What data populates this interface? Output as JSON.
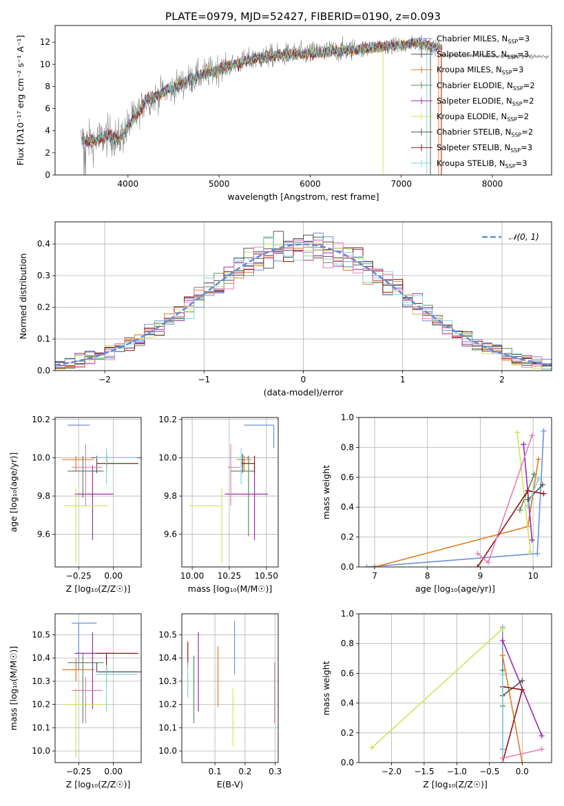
{
  "title": "PLATE=0979, MJD=52427, FIBERID=0190, z=0.093",
  "colors": {
    "Chabrier MILES": "#6a8fd8",
    "Salpeter MILES": "#4a4a4a",
    "Kroupa MILES": "#e07b20",
    "Chabrier ELODIE": "#5b8a5b",
    "Salpeter ELODIE": "#9a2aa8",
    "Kroupa ELODIE": "#cfe35a",
    "Chabrier STELIB": "#555555",
    "Salpeter STELIB": "#9a1010",
    "Kroupa STELIB": "#7fd5dc",
    "pink": "#e37fb5",
    "data": "#808080",
    "normal": "#5b8fd8"
  },
  "legend": [
    {
      "name": "Chabrier MILES",
      "text": "Chabrier MILES, N",
      "sub": "SSP",
      "tail": "=3"
    },
    {
      "name": "Salpeter MILES",
      "text": "Salpeter MILES, N",
      "sub": "SSP",
      "tail": "=3"
    },
    {
      "name": "Kroupa MILES",
      "text": "Kroupa MILES, N",
      "sub": "SSP",
      "tail": "=3"
    },
    {
      "name": "Chabrier ELODIE",
      "text": "Chabrier ELODIE, N",
      "sub": "SSP",
      "tail": "=2"
    },
    {
      "name": "Salpeter ELODIE",
      "text": "Salpeter ELODIE, N",
      "sub": "SSP",
      "tail": "=2"
    },
    {
      "name": "Kroupa ELODIE",
      "text": "Kroupa ELODIE, N",
      "sub": "SSP",
      "tail": "=2"
    },
    {
      "name": "Chabrier STELIB",
      "text": "Chabrier STELIB, N",
      "sub": "SSP",
      "tail": "=2"
    },
    {
      "name": "Salpeter STELIB",
      "text": "Salpeter STELIB, N",
      "sub": "SSP",
      "tail": "=3"
    },
    {
      "name": "Kroupa STELIB",
      "text": "Kroupa STELIB, N",
      "sub": "SSP",
      "tail": "=3"
    }
  ],
  "chart_data": [
    {
      "id": "spectrum",
      "type": "line",
      "xlabel": "wavelength [Angstrom, rest frame]",
      "ylabel": "Flux [fλ10⁻¹⁷ erg cm⁻² s⁻¹ A⁻¹]",
      "xlim": [
        3200,
        8650
      ],
      "ylim": [
        0,
        13.5
      ],
      "xticks": [
        4000,
        5000,
        6000,
        7000,
        8000
      ],
      "yticks": [
        0,
        2,
        4,
        6,
        8,
        10,
        12
      ],
      "continuum_x": [
        3500,
        3600,
        3700,
        3800,
        3900,
        4000,
        4100,
        4200,
        4300,
        4400,
        4500,
        4700,
        5000,
        5300,
        5600,
        6000,
        6400,
        6800,
        7200,
        7400
      ],
      "continuum_y": [
        3.2,
        3.0,
        3.3,
        3.6,
        3.2,
        4.3,
        5.5,
        6.8,
        7.0,
        7.5,
        7.9,
        8.7,
        9.6,
        10.3,
        10.8,
        11.0,
        11.3,
        11.6,
        11.9,
        11.5
      ],
      "data_extends_to": 8620,
      "dip_x": [
        6800,
        7400
      ]
    },
    {
      "id": "residuals",
      "type": "histogram",
      "xlabel": "(data-model)/error",
      "ylabel": "Normed distribution",
      "xlim": [
        -2.5,
        2.5
      ],
      "ylim": [
        0,
        0.47
      ],
      "xticks": [
        -2,
        -1,
        0,
        1,
        2
      ],
      "yticks": [
        0.0,
        0.1,
        0.2,
        0.3,
        0.4
      ],
      "bin_width": 0.1,
      "reference_label": "𝒩(0, 1)"
    },
    {
      "id": "age-vs-Z",
      "type": "scatter",
      "xlabel": "Z [log₁₀(Z/Z☉)]",
      "ylabel": "age  [log₁₀(age/yr)]",
      "xlim": [
        -0.42,
        0.2
      ],
      "ylim": [
        9.43,
        10.21
      ],
      "xticks": [
        -0.25,
        0.0
      ],
      "xticklabels": [
        "−0.25",
        "0.00"
      ],
      "yticks": [
        9.6,
        9.8,
        10.0,
        10.2
      ],
      "points": [
        {
          "series": "Chabrier MILES",
          "x": -0.25,
          "y": 10.17,
          "xerr": [
            0.08,
            0.08
          ],
          "yerr": [
            0.0,
            0.0
          ]
        },
        {
          "series": "Salpeter MILES",
          "x": -0.05,
          "y": 10.0,
          "xerr": [
            0.11,
            0.22
          ],
          "yerr": [
            0.05,
            0.02
          ]
        },
        {
          "series": "Kroupa MILES",
          "x": -0.27,
          "y": 9.99,
          "xerr": [
            0.1,
            0.13
          ],
          "yerr": [
            0.06,
            0.02
          ]
        },
        {
          "series": "Chabrier ELODIE",
          "x": -0.22,
          "y": 9.93,
          "xerr": [
            0.11,
            0.15
          ],
          "yerr": [
            0.14,
            0.08
          ]
        },
        {
          "series": "Salpeter ELODIE",
          "x": -0.15,
          "y": 9.81,
          "xerr": [
            0.13,
            0.15
          ],
          "yerr": [
            0.24,
            0.15
          ]
        },
        {
          "series": "Kroupa ELODIE",
          "x": -0.27,
          "y": 9.75,
          "xerr": [
            0.09,
            0.23
          ],
          "yerr": [
            0.3,
            0.09
          ]
        },
        {
          "series": "Chabrier STELIB",
          "x": -0.12,
          "y": 10.0,
          "xerr": [
            0.0,
            0.32
          ],
          "yerr": [
            0.08,
            0.01
          ]
        },
        {
          "series": "Salpeter STELIB",
          "x": -0.05,
          "y": 9.97,
          "xerr": [
            0.07,
            0.23
          ],
          "yerr": [
            0.05,
            0.04
          ]
        },
        {
          "series": "Kroupa STELIB",
          "x": -0.05,
          "y": 10.0,
          "xerr": [
            0.08,
            0.22
          ],
          "yerr": [
            0.14,
            0.05
          ]
        },
        {
          "series": "pink",
          "x": -0.2,
          "y": 9.95,
          "xerr": [
            0.1,
            0.12
          ],
          "yerr": [
            0.2,
            0.12
          ]
        }
      ]
    },
    {
      "id": "age-vs-mass",
      "type": "scatter",
      "xlabel": "mass [log₁₀(M/M☉)]",
      "xlim": [
        9.93,
        10.58
      ],
      "ylim": [
        9.43,
        10.21
      ],
      "xticks": [
        10.0,
        10.25,
        10.5
      ],
      "xticklabels": [
        "10.00",
        "10.25",
        "10.50"
      ],
      "yticks": [
        9.6,
        9.8,
        10.0,
        10.2
      ],
      "points": [
        {
          "series": "Chabrier MILES",
          "x": 10.55,
          "y": 10.17,
          "xerr": [
            0.2,
            0.0
          ],
          "yerr": [
            0.12,
            0.0
          ]
        },
        {
          "series": "Salpeter MILES",
          "x": 10.34,
          "y": 10.0,
          "xerr": [
            0.05,
            0.03
          ],
          "yerr": [
            0.05,
            0.02
          ]
        },
        {
          "series": "Kroupa MILES",
          "x": 10.35,
          "y": 9.99,
          "xerr": [
            0.05,
            0.05
          ],
          "yerr": [
            0.06,
            0.02
          ]
        },
        {
          "series": "Chabrier ELODIE",
          "x": 10.38,
          "y": 9.93,
          "xerr": [
            0.12,
            0.04
          ],
          "yerr": [
            0.34,
            0.08
          ]
        },
        {
          "series": "Salpeter ELODIE",
          "x": 10.42,
          "y": 9.81,
          "xerr": [
            0.2,
            0.09
          ],
          "yerr": [
            0.24,
            0.15
          ]
        },
        {
          "series": "Kroupa ELODIE",
          "x": 10.2,
          "y": 9.75,
          "xerr": [
            0.22,
            0.0
          ],
          "yerr": [
            0.3,
            0.09
          ]
        },
        {
          "series": "Chabrier STELIB",
          "x": 10.34,
          "y": 10.0,
          "xerr": [
            0.0,
            0.04
          ],
          "yerr": [
            0.08,
            0.01
          ]
        },
        {
          "series": "Salpeter STELIB",
          "x": 10.42,
          "y": 9.97,
          "xerr": [
            0.09,
            0.0
          ],
          "yerr": [
            0.05,
            0.04
          ]
        },
        {
          "series": "Kroupa STELIB",
          "x": 10.33,
          "y": 10.0,
          "xerr": [
            0.04,
            0.04
          ],
          "yerr": [
            0.14,
            0.05
          ]
        },
        {
          "series": "pink",
          "x": 10.26,
          "y": 9.95,
          "xerr": [
            0.02,
            0.06
          ],
          "yerr": [
            0.2,
            0.12
          ]
        }
      ]
    },
    {
      "id": "weight-vs-age",
      "type": "line",
      "xlabel": "age  [log₁₀(age/yr)]",
      "ylabel": "mass weight",
      "xlim": [
        6.7,
        10.35
      ],
      "ylim": [
        0,
        1.0
      ],
      "xticks": [
        7,
        8,
        9,
        10
      ],
      "yticks": [
        0.0,
        0.2,
        0.4,
        0.6,
        0.8,
        1.0
      ],
      "series": [
        {
          "name": "Chabrier MILES",
          "x": [
            6.85,
            10.08,
            10.2
          ],
          "y": [
            0.0,
            0.09,
            0.91
          ]
        },
        {
          "name": "Kroupa MILES",
          "x": [
            7.0,
            9.9,
            10.1
          ],
          "y": [
            0.0,
            0.27,
            0.72
          ]
        },
        {
          "name": "Chabrier ELODIE",
          "x": [
            9.75,
            10.02
          ],
          "y": [
            0.38,
            0.62
          ]
        },
        {
          "name": "Salpeter ELODIE",
          "x": [
            9.82,
            9.98
          ],
          "y": [
            0.82,
            0.18
          ]
        },
        {
          "name": "Kroupa ELODIE",
          "x": [
            9.7,
            9.95
          ],
          "y": [
            0.9,
            0.1
          ]
        },
        {
          "name": "Chabrier STELIB",
          "x": [
            9.9,
            10.18
          ],
          "y": [
            0.45,
            0.55
          ]
        },
        {
          "name": "Salpeter STELIB",
          "x": [
            8.95,
            9.9,
            10.2
          ],
          "y": [
            0.0,
            0.51,
            0.49
          ]
        },
        {
          "name": "Kroupa STELIB",
          "x": [
            9.9,
            10.1
          ],
          "y": [
            0.41,
            0.59
          ]
        },
        {
          "name": "pink",
          "x": [
            8.95,
            9.15,
            9.98
          ],
          "y": [
            0.09,
            0.03,
            0.88
          ]
        }
      ]
    },
    {
      "id": "mass-vs-Z",
      "type": "scatter",
      "xlabel": "Z [log₁₀(Z/Z☉)]",
      "ylabel": "mass [log₁₀(M/M☉)]",
      "xlim": [
        -0.42,
        0.2
      ],
      "ylim": [
        9.95,
        10.59
      ],
      "xticks": [
        -0.25,
        0.0
      ],
      "xticklabels": [
        "−0.25",
        "0.00"
      ],
      "yticks": [
        10.0,
        10.1,
        10.2,
        10.3,
        10.4,
        10.5
      ],
      "points": [
        {
          "series": "Chabrier MILES",
          "x": -0.25,
          "y": 10.55,
          "xerr": [
            0.05,
            0.13
          ],
          "yerr": [
            0.2,
            0.0
          ]
        },
        {
          "series": "Salpeter MILES",
          "x": -0.05,
          "y": 10.34,
          "xerr": [
            0.07,
            0.22
          ],
          "yerr": [
            0.05,
            0.03
          ]
        },
        {
          "series": "Kroupa MILES",
          "x": -0.27,
          "y": 10.35,
          "xerr": [
            0.1,
            0.13
          ],
          "yerr": [
            0.05,
            0.05
          ]
        },
        {
          "series": "Chabrier ELODIE",
          "x": -0.22,
          "y": 10.38,
          "xerr": [
            0.11,
            0.15
          ],
          "yerr": [
            0.26,
            0.04
          ]
        },
        {
          "series": "Salpeter ELODIE",
          "x": -0.15,
          "y": 10.42,
          "xerr": [
            0.13,
            0.15
          ],
          "yerr": [
            0.24,
            0.09
          ]
        },
        {
          "series": "Kroupa ELODIE",
          "x": -0.27,
          "y": 10.2,
          "xerr": [
            0.09,
            0.23
          ],
          "yerr": [
            0.23,
            0.07
          ]
        },
        {
          "series": "Chabrier STELIB",
          "x": -0.12,
          "y": 10.34,
          "xerr": [
            0.0,
            0.32
          ],
          "yerr": [
            0.0,
            0.04
          ]
        },
        {
          "series": "Salpeter STELIB",
          "x": -0.05,
          "y": 10.42,
          "xerr": [
            0.07,
            0.23
          ],
          "yerr": [
            0.09,
            0.0
          ]
        },
        {
          "series": "Kroupa STELIB",
          "x": -0.05,
          "y": 10.33,
          "xerr": [
            0.08,
            0.22
          ],
          "yerr": [
            0.16,
            0.04
          ]
        },
        {
          "series": "pink",
          "x": -0.2,
          "y": 10.26,
          "xerr": [
            0.1,
            0.12
          ],
          "yerr": [
            0.14,
            0.06
          ]
        }
      ]
    },
    {
      "id": "mass-vs-EBV",
      "type": "scatter",
      "xlabel": "E(B-V)",
      "xlim": [
        -0.01,
        0.31
      ],
      "ylim": [
        9.95,
        10.59
      ],
      "xticks": [
        0.1,
        0.2,
        0.3
      ],
      "yticks": [
        10.0,
        10.1,
        10.2,
        10.3,
        10.4,
        10.5
      ],
      "points": [
        {
          "series": "Chabrier MILES",
          "x": 0.165,
          "y": 10.45,
          "yerr": [
            0.12,
            0.11
          ]
        },
        {
          "series": "Kroupa MILES",
          "x": 0.11,
          "y": 10.32,
          "yerr": [
            0.13,
            0.13
          ]
        },
        {
          "series": "Chabrier ELODIE",
          "x": 0.03,
          "y": 10.26,
          "yerr": [
            0.14,
            0.15
          ]
        },
        {
          "series": "Salpeter ELODIE",
          "x": 0.045,
          "y": 10.34,
          "yerr": [
            0.17,
            0.17
          ]
        },
        {
          "series": "Kroupa ELODIE",
          "x": 0.16,
          "y": 10.14,
          "yerr": [
            0.12,
            0.13
          ]
        },
        {
          "series": "Salpeter STELIB",
          "x": 0.01,
          "y": 10.42,
          "yerr": [
            0.06,
            0.05
          ]
        },
        {
          "series": "Kroupa STELIB",
          "x": 0.01,
          "y": 10.3,
          "yerr": [
            0.07,
            0.08
          ]
        },
        {
          "series": "pink",
          "x": 0.298,
          "y": 10.25,
          "yerr": [
            0.13,
            0.13
          ]
        }
      ]
    },
    {
      "id": "weight-vs-Z",
      "type": "line",
      "xlabel": "Z [log₁₀(Z/Z☉)]",
      "ylabel": "mass weight",
      "xlim": [
        -2.5,
        0.45
      ],
      "ylim": [
        0,
        1.0
      ],
      "xticks": [
        -2.0,
        -1.5,
        -1.0,
        -0.5,
        0.0
      ],
      "xticklabels": [
        "−2.0",
        "−1.5",
        "−1.0",
        "−0.5",
        "0.0"
      ],
      "yticks": [
        0.0,
        0.2,
        0.4,
        0.6,
        0.8,
        1.0
      ],
      "series": [
        {
          "name": "Chabrier MILES",
          "x": [
            -0.3,
            -0.3
          ],
          "y": [
            0.09,
            0.91
          ]
        },
        {
          "name": "Kroupa MILES",
          "x": [
            -0.3,
            -0.3,
            0.0
          ],
          "y": [
            0.72,
            0.72,
            0.0
          ]
        },
        {
          "name": "Chabrier ELODIE",
          "x": [
            -0.3,
            -0.3
          ],
          "y": [
            0.38,
            0.62
          ]
        },
        {
          "name": "Salpeter ELODIE",
          "x": [
            -0.3,
            0.3
          ],
          "y": [
            0.82,
            0.18
          ]
        },
        {
          "name": "Kroupa ELODIE",
          "x": [
            -2.3,
            -0.3
          ],
          "y": [
            0.1,
            0.9
          ]
        },
        {
          "name": "Chabrier STELIB",
          "x": [
            -0.3,
            0.0
          ],
          "y": [
            0.45,
            0.55
          ]
        },
        {
          "name": "Salpeter STELIB",
          "x": [
            -0.3,
            -0.3,
            0.0,
            -0.3
          ],
          "y": [
            0.0,
            0.51,
            0.49,
            0.0
          ]
        },
        {
          "name": "Kroupa STELIB",
          "x": [
            -0.3,
            -0.3
          ],
          "y": [
            0.0,
            0.59
          ]
        },
        {
          "name": "pink",
          "x": [
            -0.3,
            0.3
          ],
          "y": [
            0.03,
            0.09
          ]
        }
      ]
    }
  ]
}
